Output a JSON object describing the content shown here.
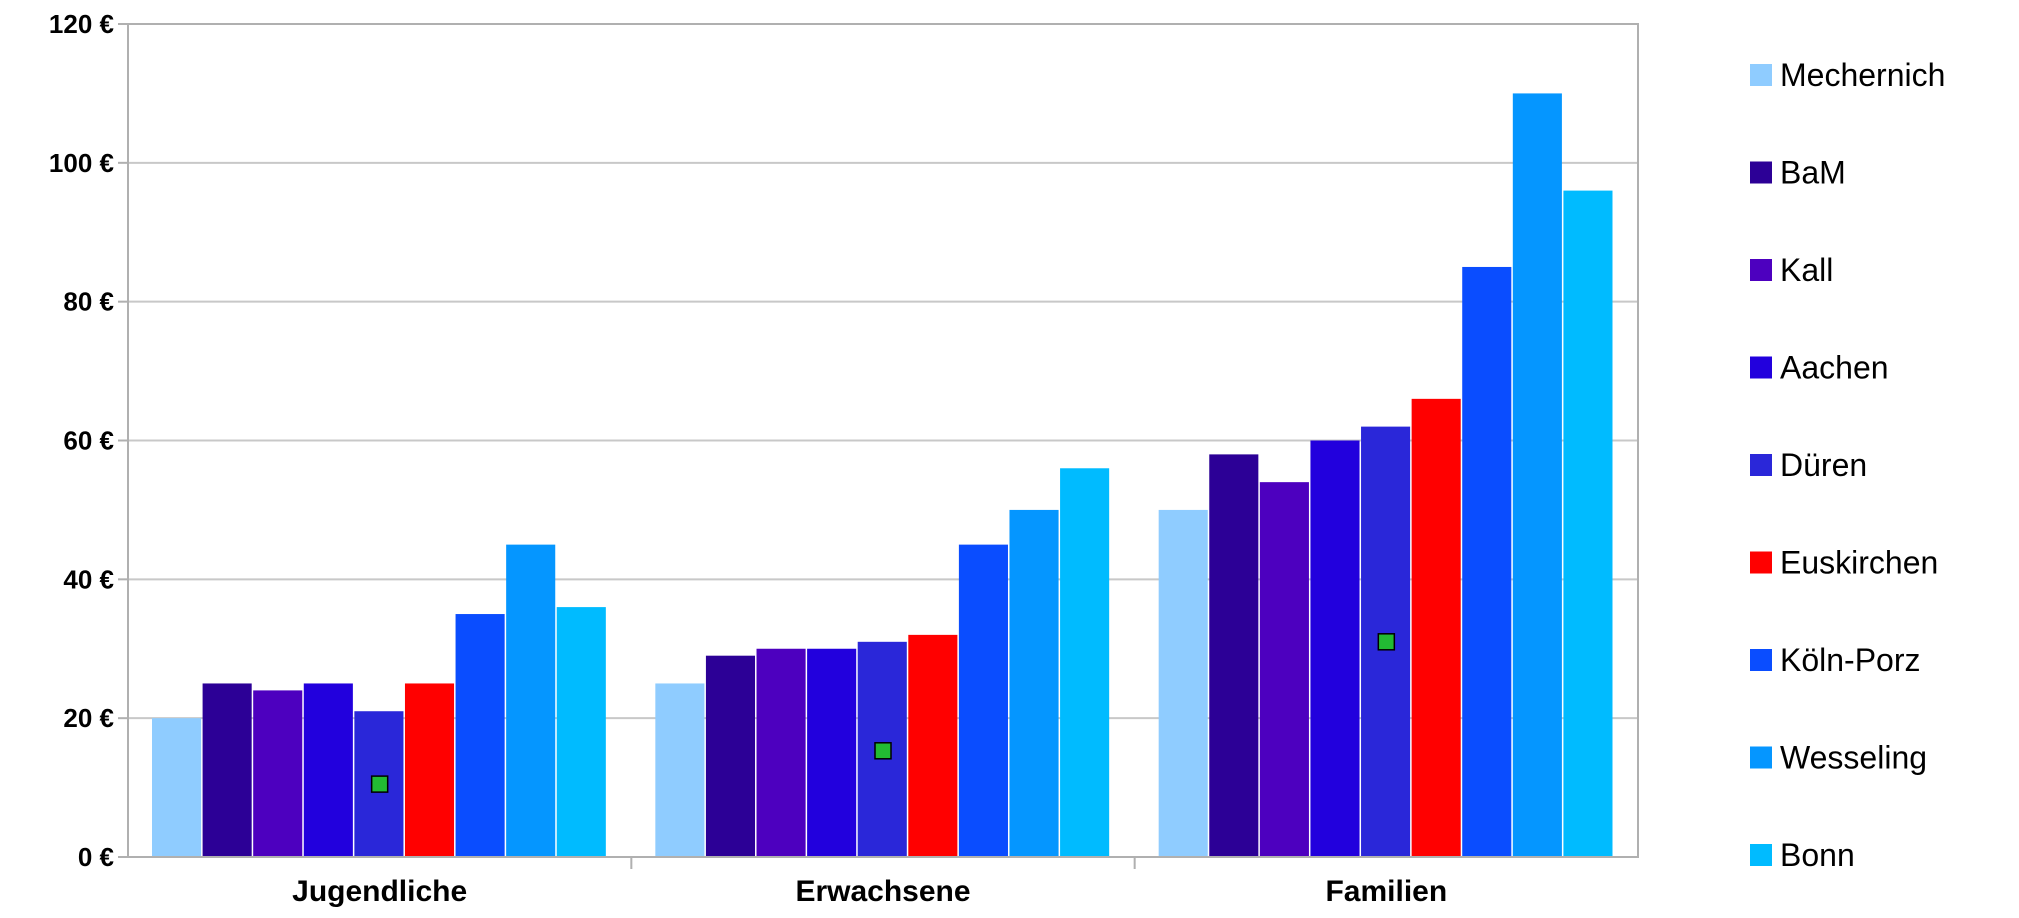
{
  "chart_data": {
    "type": "bar",
    "title": "",
    "xlabel": "",
    "ylabel": "",
    "ylim": [
      0,
      120
    ],
    "y_ticks": [
      0,
      20,
      40,
      60,
      80,
      100,
      120
    ],
    "y_tick_labels": [
      "0 €",
      "20 €",
      "40 €",
      "60 €",
      "80 €",
      "100 €",
      "120 €"
    ],
    "grid": true,
    "legend_position": "right",
    "categories": [
      "Jugendliche",
      "Erwachsene",
      "Familien"
    ],
    "series": [
      {
        "name": "Mechernich",
        "color": "#8fccff",
        "values": [
          20,
          25,
          50
        ]
      },
      {
        "name": "BaM",
        "color": "#2c0096",
        "values": [
          25,
          29,
          58
        ]
      },
      {
        "name": "Kall",
        "color": "#4d00bf",
        "values": [
          24,
          30,
          54
        ]
      },
      {
        "name": "Aachen",
        "color": "#2200dd",
        "values": [
          25,
          30,
          60
        ]
      },
      {
        "name": "Düren",
        "color": "#2a27d9",
        "values": [
          21,
          31,
          62
        ]
      },
      {
        "name": "Euskirchen",
        "color": "#ff0000",
        "values": [
          25,
          32,
          66
        ]
      },
      {
        "name": "Köln-Porz",
        "color": "#0a4dff",
        "values": [
          35,
          45,
          85
        ]
      },
      {
        "name": "Wesseling",
        "color": "#0596ff",
        "values": [
          45,
          50,
          110
        ]
      },
      {
        "name": "Bonn",
        "color": "#00bbff",
        "values": [
          36,
          56,
          96
        ]
      }
    ],
    "markers": {
      "series": "Düren",
      "color": "#22bb33",
      "values": [
        10.5,
        15.3,
        31
      ]
    }
  }
}
